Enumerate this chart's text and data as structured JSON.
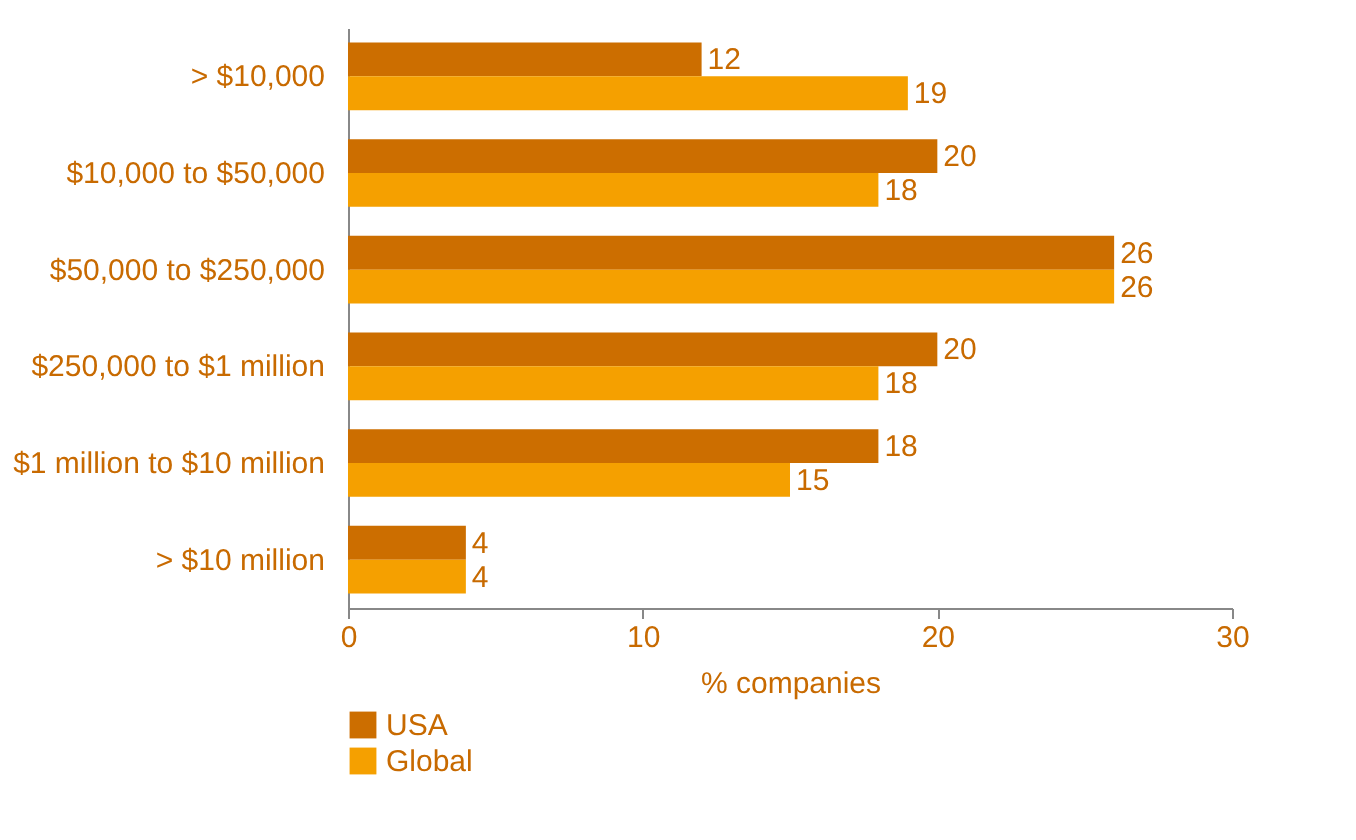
{
  "chart_data": {
    "type": "bar",
    "orientation": "horizontal",
    "xlabel": "% companies",
    "categories": [
      "> $10,000",
      "$10,000 to $50,000",
      "$50,000 to $250,000",
      "$250,000 to $1 million",
      "$1 million to $10 million",
      "> $10 million"
    ],
    "series": [
      {
        "name": "USA",
        "color": "#cc6e00",
        "values": [
          12,
          20,
          26,
          20,
          18,
          4
        ]
      },
      {
        "name": "Global",
        "color": "#f5a000",
        "values": [
          19,
          18,
          26,
          18,
          15,
          4
        ]
      }
    ],
    "xlim": [
      0,
      30
    ],
    "xticks": [
      0,
      10,
      20,
      30
    ],
    "data_labels": true,
    "grid": false,
    "legend": "bottom"
  }
}
